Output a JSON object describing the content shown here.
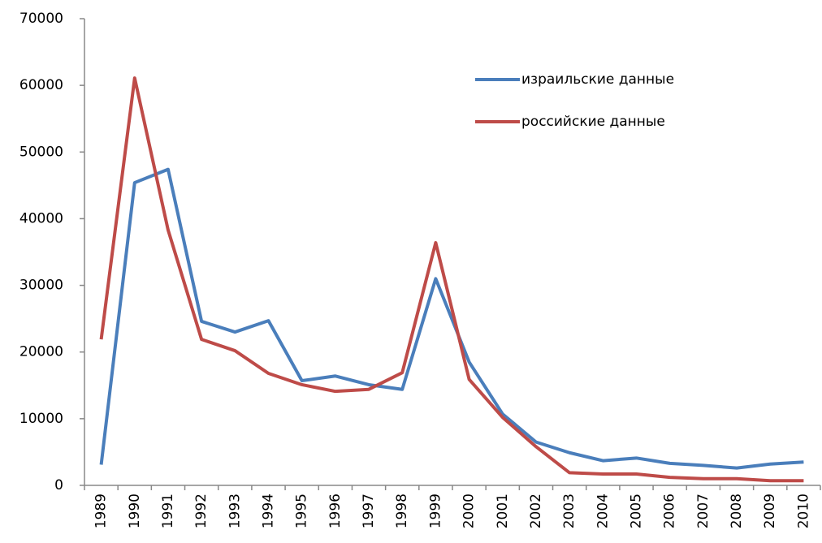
{
  "chart_data": {
    "type": "line",
    "categories": [
      "1989",
      "1990",
      "1991",
      "1992",
      "1993",
      "1994",
      "1995",
      "1996",
      "1997",
      "1998",
      "1999",
      "2000",
      "2001",
      "2002",
      "2003",
      "2004",
      "2005",
      "2006",
      "2007",
      "2008",
      "2009",
      "2010"
    ],
    "series": [
      {
        "name": "израильские данные",
        "color": "#4a7ebb",
        "values": [
          3100,
          45400,
          47400,
          24600,
          23000,
          24700,
          15700,
          16400,
          15100,
          14400,
          31000,
          18500,
          10700,
          6500,
          4900,
          3700,
          4100,
          3300,
          3000,
          2600,
          3200,
          3500
        ]
      },
      {
        "name": "российские данные",
        "color": "#be4b48",
        "values": [
          21900,
          61100,
          38300,
          21900,
          20200,
          16800,
          15100,
          14100,
          14400,
          16900,
          36400,
          15900,
          10200,
          5800,
          1900,
          1700,
          1700,
          1200,
          1000,
          1000,
          700,
          700
        ]
      }
    ],
    "ylim": [
      0,
      70000
    ],
    "yticks": [
      0,
      10000,
      20000,
      30000,
      40000,
      50000,
      60000,
      70000
    ],
    "grid": false,
    "legend": "upper-right"
  }
}
